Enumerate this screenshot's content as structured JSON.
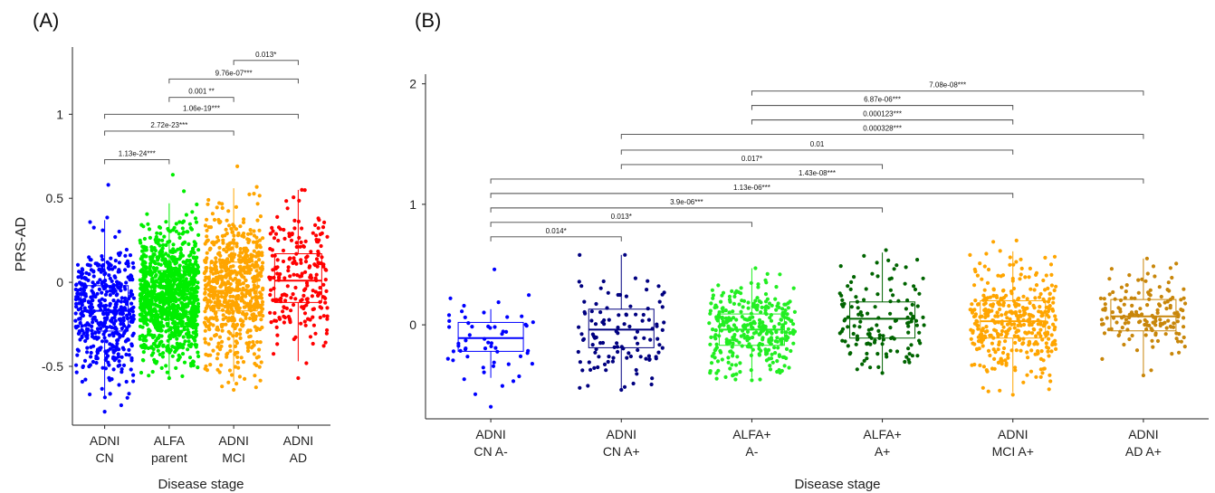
{
  "chart_data": [
    {
      "panel_label": "(A)",
      "type": "box",
      "xlabel": "Disease stage",
      "ylabel": "PRS-AD",
      "ylim": [
        -0.85,
        1.4
      ],
      "yticks": [
        -0.5,
        0,
        0.5,
        1
      ],
      "ytick_labels": [
        "-0.5",
        "0",
        "0.5",
        "1"
      ],
      "categories": [
        {
          "lines": [
            "ADNI",
            "CN"
          ],
          "color": "#0000ff",
          "box": {
            "q1": -0.29,
            "median": -0.17,
            "q3": -0.02,
            "whisker_low": -0.68,
            "whisker_high": 0.37,
            "min": -0.77,
            "max": 0.58
          }
        },
        {
          "lines": [
            "ALFA",
            "parent"
          ],
          "color": "#00ee00",
          "box": {
            "q1": -0.19,
            "median": -0.07,
            "q3": 0.07,
            "whisker_low": -0.57,
            "whisker_high": 0.47,
            "min": -0.57,
            "max": 0.64
          }
        },
        {
          "lines": [
            "ADNI",
            "MCI"
          ],
          "color": "#ffa500",
          "box": {
            "q1": -0.17,
            "median": -0.05,
            "q3": 0.12,
            "whisker_low": -0.59,
            "whisker_high": 0.56,
            "min": -0.64,
            "max": 0.69
          }
        },
        {
          "lines": [
            "ADNI",
            "AD"
          ],
          "color": "#ff0000",
          "box": {
            "q1": -0.12,
            "median": 0.01,
            "q3": 0.17,
            "whisker_low": -0.47,
            "whisker_high": 0.55,
            "min": -0.57,
            "max": 0.55
          }
        }
      ],
      "comparisons": [
        {
          "from": 0,
          "to": 1,
          "level": 0.73,
          "label": "1.13e-24***"
        },
        {
          "from": 0,
          "to": 2,
          "level": 0.9,
          "label": "2.72e-23***"
        },
        {
          "from": 0,
          "to": 3,
          "level": 1.0,
          "label": "1.06e-19***"
        },
        {
          "from": 1,
          "to": 2,
          "level": 1.1,
          "label": "0.001 **"
        },
        {
          "from": 1,
          "to": 3,
          "level": 1.21,
          "label": "9.76e-07***"
        },
        {
          "from": 2,
          "to": 3,
          "level": 1.32,
          "label": "0.013*"
        }
      ]
    },
    {
      "panel_label": "(B)",
      "type": "box",
      "xlabel": "Disease stage",
      "ylabel": "",
      "ylim": [
        -0.78,
        2.08
      ],
      "yticks": [
        0,
        1,
        2
      ],
      "ytick_labels": [
        "0",
        "1",
        "2"
      ],
      "categories": [
        {
          "lines": [
            "ADNI",
            "CN A-"
          ],
          "color": "#0000ff",
          "box": {
            "q1": -0.22,
            "median": -0.11,
            "q3": 0.02,
            "whisker_low": -0.44,
            "whisker_high": 0.13,
            "min": -0.68,
            "max": 0.46
          }
        },
        {
          "lines": [
            "ADNI",
            "CN A+"
          ],
          "color": "#000080",
          "box": {
            "q1": -0.19,
            "median": -0.04,
            "q3": 0.13,
            "whisker_low": -0.54,
            "whisker_high": 0.58,
            "min": -0.54,
            "max": 0.58
          }
        },
        {
          "lines": [
            "ALFA+",
            "A-"
          ],
          "color": "#22ee22",
          "box": {
            "q1": -0.17,
            "median": -0.04,
            "q3": 0.09,
            "whisker_low": -0.44,
            "whisker_high": 0.47,
            "min": -0.46,
            "max": 0.47
          }
        },
        {
          "lines": [
            "ALFA+",
            "A+"
          ],
          "color": "#006400",
          "box": {
            "q1": -0.11,
            "median": 0.05,
            "q3": 0.19,
            "whisker_low": -0.4,
            "whisker_high": 0.6,
            "min": -0.4,
            "max": 0.62
          }
        },
        {
          "lines": [
            "ADNI",
            "MCI A+"
          ],
          "color": "#ffa500",
          "box": {
            "q1": -0.11,
            "median": 0.03,
            "q3": 0.2,
            "whisker_low": -0.56,
            "whisker_high": 0.61,
            "min": -0.58,
            "max": 0.7
          }
        },
        {
          "lines": [
            "ADNI",
            "AD A+"
          ],
          "color": "#c8860a",
          "box": {
            "q1": -0.05,
            "median": 0.07,
            "q3": 0.21,
            "whisker_low": -0.42,
            "whisker_high": 0.55,
            "min": -0.42,
            "max": 0.55
          }
        }
      ],
      "comparisons": [
        {
          "from": 0,
          "to": 1,
          "level": 0.73,
          "label": "0.014*"
        },
        {
          "from": 0,
          "to": 2,
          "level": 0.85,
          "label": "0.013*"
        },
        {
          "from": 0,
          "to": 3,
          "level": 0.97,
          "label": "3.9e-06***"
        },
        {
          "from": 0,
          "to": 4,
          "level": 1.09,
          "label": "1.13e-06***"
        },
        {
          "from": 0,
          "to": 5,
          "level": 1.21,
          "label": "1.43e-08***"
        },
        {
          "from": 1,
          "to": 3,
          "level": 1.33,
          "label": "0.017*"
        },
        {
          "from": 1,
          "to": 4,
          "level": 1.45,
          "label": "0.01"
        },
        {
          "from": 1,
          "to": 5,
          "level": 1.58,
          "label": "0.000328***"
        },
        {
          "from": 2,
          "to": 4,
          "level": 1.7,
          "label": "0.000123***"
        },
        {
          "from": 2,
          "to": 4,
          "level": 1.82,
          "label": "6.87e-06***"
        },
        {
          "from": 2,
          "to": 5,
          "level": 1.94,
          "label": "7.08e-08***"
        }
      ]
    }
  ]
}
